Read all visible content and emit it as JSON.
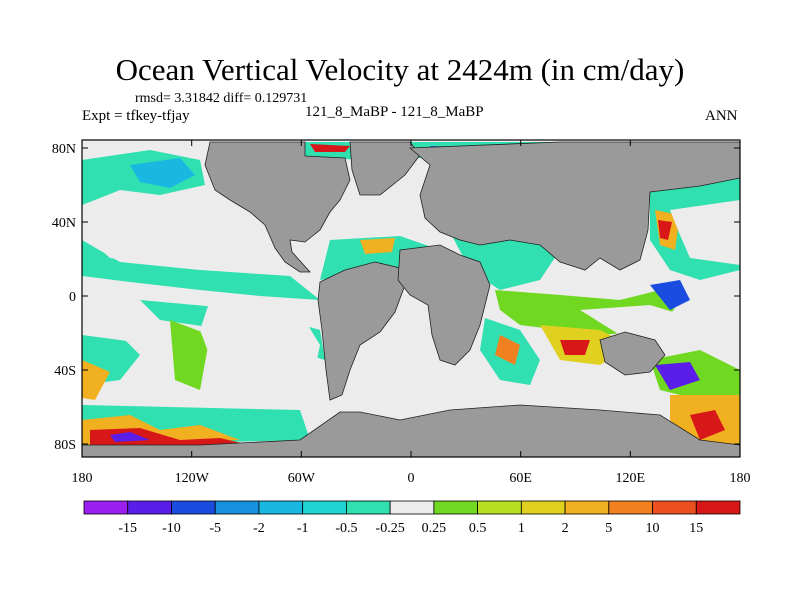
{
  "title": "Ocean Vertical Velocity at 2424m (in cm/day)",
  "stats": "rmsd= 3.31842 diff= 0.129731",
  "expt": "Expt = tfkey-tfjay",
  "case": "121_8_MaBP - 121_8_MaBP",
  "season": "ANN",
  "map": {
    "land_color": "#9a9a9a",
    "lat_ticks": [
      "80N",
      "40N",
      "0",
      "40S",
      "80S"
    ],
    "lon_ticks": [
      "180",
      "120W",
      "60W",
      "0",
      "60E",
      "120E",
      "180"
    ]
  },
  "colorbar": {
    "labels": [
      "-15",
      "-10",
      "-5",
      "-2",
      "-1",
      "-0.5",
      "-0.25",
      "0.25",
      "0.5",
      "1",
      "2",
      "5",
      "10",
      "15"
    ],
    "colors": [
      "#9a1ff0",
      "#5a1ee8",
      "#1a4ce0",
      "#1890e0",
      "#18b8e0",
      "#20d4d4",
      "#30e0b0",
      "#ececec",
      "#70d820",
      "#b8e020",
      "#e0d020",
      "#f0b020",
      "#f08020",
      "#ec5020",
      "#d81818"
    ]
  }
}
